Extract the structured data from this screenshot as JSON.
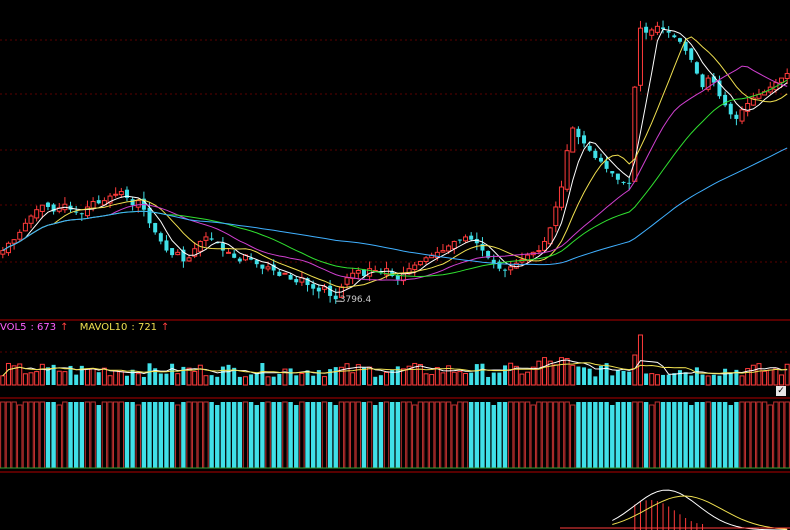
{
  "chart_data": [
    {
      "type": "candlestick",
      "panel": "price",
      "annotations": [
        {
          "text": "3796.4",
          "candle_index": 59
        }
      ],
      "series_colors": {
        "up": "#ff3b3b",
        "down": "#40e0e8",
        "ma5": "#ffffff",
        "ma10": "#f0e050",
        "ma20": "#d040d0",
        "ma30": "#30e030",
        "ma60": "#40b0ff"
      },
      "ohlc": []
    },
    {
      "type": "bar",
      "panel": "volume",
      "legend": [
        {
          "name": "VOL5",
          "value": "673",
          "color": "#ff60ff"
        },
        {
          "name": "MAVOL10",
          "value": "721",
          "color": "#f0e050"
        }
      ]
    },
    {
      "type": "bar",
      "panel": "indicator"
    },
    {
      "type": "line",
      "panel": "oscillator"
    }
  ],
  "icons": {
    "checkbox": "check-icon",
    "arrow": "up-arrow-icon"
  },
  "ui": {
    "check": "✓",
    "arrow": "↑"
  }
}
